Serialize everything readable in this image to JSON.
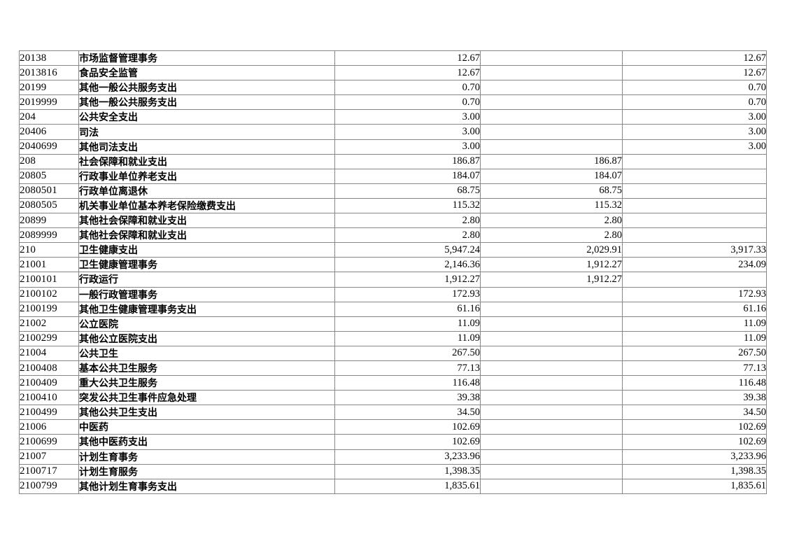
{
  "page": {
    "background_color": "#ffffff",
    "text_color": "#000000"
  },
  "table": {
    "border_color": "#868686",
    "description": "budget-expenditure-table-by-function-code",
    "columns": [
      {
        "key": "code"
      },
      {
        "key": "name"
      },
      {
        "key": "value1"
      },
      {
        "key": "value2"
      },
      {
        "key": "value3"
      }
    ],
    "rows": [
      [
        "20138",
        "市场监督管理事务",
        "12.67",
        "",
        "12.67"
      ],
      [
        "2013816",
        "食品安全监管",
        "12.67",
        "",
        "12.67"
      ],
      [
        "20199",
        "其他一般公共服务支出",
        "0.70",
        "",
        "0.70"
      ],
      [
        "2019999",
        "其他一般公共服务支出",
        "0.70",
        "",
        "0.70"
      ],
      [
        "204",
        "公共安全支出",
        "3.00",
        "",
        "3.00"
      ],
      [
        "20406",
        "司法",
        "3.00",
        "",
        "3.00"
      ],
      [
        "2040699",
        "其他司法支出",
        "3.00",
        "",
        "3.00"
      ],
      [
        "208",
        "社会保障和就业支出",
        "186.87",
        "186.87",
        ""
      ],
      [
        "20805",
        "行政事业单位养老支出",
        "184.07",
        "184.07",
        ""
      ],
      [
        "2080501",
        "行政单位离退休",
        "68.75",
        "68.75",
        ""
      ],
      [
        "2080505",
        "机关事业单位基本养老保险缴费支出",
        "115.32",
        "115.32",
        ""
      ],
      [
        "20899",
        "其他社会保障和就业支出",
        "2.80",
        "2.80",
        ""
      ],
      [
        "2089999",
        "其他社会保障和就业支出",
        "2.80",
        "2.80",
        ""
      ],
      [
        "210",
        "卫生健康支出",
        "5,947.24",
        "2,029.91",
        "3,917.33"
      ],
      [
        "21001",
        "卫生健康管理事务",
        "2,146.36",
        "1,912.27",
        "234.09"
      ],
      [
        "2100101",
        "行政运行",
        "1,912.27",
        "1,912.27",
        ""
      ],
      [
        "2100102",
        "一般行政管理事务",
        "172.93",
        "",
        "172.93"
      ],
      [
        "2100199",
        "其他卫生健康管理事务支出",
        "61.16",
        "",
        "61.16"
      ],
      [
        "21002",
        "公立医院",
        "11.09",
        "",
        "11.09"
      ],
      [
        "2100299",
        "其他公立医院支出",
        "11.09",
        "",
        "11.09"
      ],
      [
        "21004",
        "公共卫生",
        "267.50",
        "",
        "267.50"
      ],
      [
        "2100408",
        "基本公共卫生服务",
        "77.13",
        "",
        "77.13"
      ],
      [
        "2100409",
        "重大公共卫生服务",
        "116.48",
        "",
        "116.48"
      ],
      [
        "2100410",
        "突发公共卫生事件应急处理",
        "39.38",
        "",
        "39.38"
      ],
      [
        "2100499",
        "其他公共卫生支出",
        "34.50",
        "",
        "34.50"
      ],
      [
        "21006",
        "中医药",
        "102.69",
        "",
        "102.69"
      ],
      [
        "2100699",
        "其他中医药支出",
        "102.69",
        "",
        "102.69"
      ],
      [
        "21007",
        "计划生育事务",
        "3,233.96",
        "",
        "3,233.96"
      ],
      [
        "2100717",
        "计划生育服务",
        "1,398.35",
        "",
        "1,398.35"
      ],
      [
        "2100799",
        "其他计划生育事务支出",
        "1,835.61",
        "",
        "1,835.61"
      ]
    ]
  }
}
